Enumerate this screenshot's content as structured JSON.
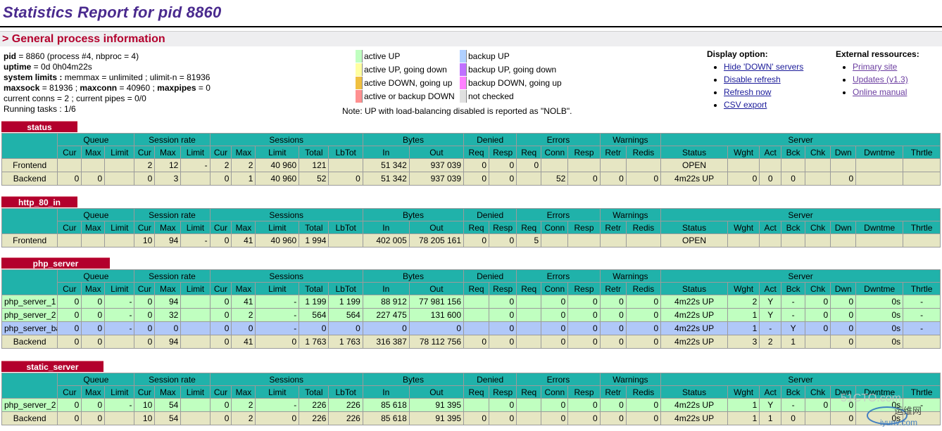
{
  "title": "Statistics Report for pid 8860",
  "section_title": "> General process information",
  "info": {
    "pid_label": "pid",
    "pid_text": " = 8860 (process #4, nbproc = 4)",
    "uptime_label": "uptime",
    "uptime_text": " = 0d 0h04m22s",
    "limits_label": "system limits :",
    "limits_text": " memmax = unlimited ; ulimit-n = 81936",
    "maxsock_label": "maxsock",
    "maxsock_text": " = 81936 ; ",
    "maxconn_label": "maxconn",
    "maxconn_text": " = 40960 ; ",
    "maxpipes_label": "maxpipes",
    "maxpipes_text": " = 0",
    "conns_text": "current conns = 2 ; current pipes = 0/0",
    "tasks_text": "Running tasks : 1/6"
  },
  "legend": {
    "items": [
      {
        "label": "active UP",
        "color": "#c0ffc0"
      },
      {
        "label": "active UP, going down",
        "color": "#ffffa0"
      },
      {
        "label": "active DOWN, going up",
        "color": "#f0c040"
      },
      {
        "label": "active or backup DOWN",
        "color": "#ff9090"
      },
      {
        "label": "backup UP",
        "color": "#b0d0ff"
      },
      {
        "label": "backup UP, going down",
        "color": "#c070ff"
      },
      {
        "label": "backup DOWN, going up",
        "color": "#ff80ff"
      },
      {
        "label": "not checked",
        "color": "#e0e0e0"
      }
    ],
    "note": "Note: UP with load-balancing disabled is reported as \"NOLB\"."
  },
  "display_options": {
    "heading": "Display option:",
    "links": [
      "Hide 'DOWN' servers",
      "Disable refresh",
      "Refresh now",
      "CSV export"
    ]
  },
  "external": {
    "heading": "External ressources:",
    "links": [
      "Primary site",
      "Updates (v1.3)",
      "Online manual"
    ]
  },
  "groups": [
    "Queue",
    "Session rate",
    "Sessions",
    "Bytes",
    "Denied",
    "Errors",
    "Warnings",
    "Server"
  ],
  "columns": [
    "Cur",
    "Max",
    "Limit",
    "Cur",
    "Max",
    "Limit",
    "Cur",
    "Max",
    "Limit",
    "Total",
    "LbTot",
    "In",
    "Out",
    "Req",
    "Resp",
    "Req",
    "Conn",
    "Resp",
    "Retr",
    "Redis",
    "Status",
    "Wght",
    "Act",
    "Bck",
    "Chk",
    "Dwn",
    "Dwntme",
    "Thrtle"
  ],
  "proxies": [
    {
      "name": "status",
      "rows": [
        {
          "type": "fe",
          "cells": [
            "Frontend",
            "",
            "",
            "",
            "2",
            "12",
            "-",
            "2",
            "2",
            "40 960",
            "121",
            "",
            "51 342",
            "937 039",
            "0",
            "0",
            "0",
            "",
            "",
            "",
            "",
            "OPEN",
            "",
            "",
            "",
            "",
            "",
            "",
            ""
          ]
        },
        {
          "type": "be",
          "cells": [
            "Backend",
            "0",
            "0",
            "",
            "0",
            "3",
            "",
            "0",
            "1",
            "40 960",
            "52",
            "0",
            "51 342",
            "937 039",
            "0",
            "0",
            "",
            "52",
            "0",
            "0",
            "0",
            "4m22s UP",
            "0",
            "0",
            "0",
            "",
            "0",
            "",
            ""
          ]
        }
      ]
    },
    {
      "name": "http_80_in",
      "rows": [
        {
          "type": "fe",
          "cells": [
            "Frontend",
            "",
            "",
            "",
            "10",
            "94",
            "-",
            "0",
            "41",
            "40 960",
            "1 994",
            "",
            "402 005",
            "78 205 161",
            "0",
            "0",
            "5",
            "",
            "",
            "",
            "",
            "OPEN",
            "",
            "",
            "",
            "",
            "",
            "",
            ""
          ]
        }
      ]
    },
    {
      "name": "php_server",
      "rows": [
        {
          "type": "up",
          "cells": [
            "php_server_1",
            "0",
            "0",
            "-",
            "0",
            "94",
            "",
            "0",
            "41",
            "-",
            "1 199",
            "1 199",
            "88 912",
            "77 981 156",
            "",
            "0",
            "",
            "0",
            "0",
            "0",
            "0",
            "4m22s UP",
            "2",
            "Y",
            "-",
            "0",
            "0",
            "0s",
            "-"
          ]
        },
        {
          "type": "up",
          "cells": [
            "php_server_2",
            "0",
            "0",
            "-",
            "0",
            "32",
            "",
            "0",
            "2",
            "-",
            "564",
            "564",
            "227 475",
            "131 600",
            "",
            "0",
            "",
            "0",
            "0",
            "0",
            "0",
            "4m22s UP",
            "1",
            "Y",
            "-",
            "0",
            "0",
            "0s",
            "-"
          ]
        },
        {
          "type": "bk",
          "cells": [
            "php_server_bak",
            "0",
            "0",
            "-",
            "0",
            "0",
            "",
            "0",
            "0",
            "-",
            "0",
            "0",
            "0",
            "0",
            "",
            "0",
            "",
            "0",
            "0",
            "0",
            "0",
            "4m22s UP",
            "1",
            "-",
            "Y",
            "0",
            "0",
            "0s",
            "-"
          ]
        },
        {
          "type": "be",
          "cells": [
            "Backend",
            "0",
            "0",
            "",
            "0",
            "94",
            "",
            "0",
            "41",
            "0",
            "1 763",
            "1 763",
            "316 387",
            "78 112 756",
            "0",
            "0",
            "",
            "0",
            "0",
            "0",
            "0",
            "4m22s UP",
            "3",
            "2",
            "1",
            "",
            "0",
            "0s",
            ""
          ]
        }
      ]
    },
    {
      "name": "static_server",
      "rows": [
        {
          "type": "up",
          "cells": [
            "php_server_2",
            "0",
            "0",
            "-",
            "10",
            "54",
            "",
            "0",
            "2",
            "-",
            "226",
            "226",
            "85 618",
            "91 395",
            "",
            "0",
            "",
            "0",
            "0",
            "0",
            "0",
            "4m22s UP",
            "1",
            "Y",
            "-",
            "0",
            "0",
            "0s",
            "-"
          ]
        },
        {
          "type": "be",
          "cells": [
            "Backend",
            "0",
            "0",
            "",
            "10",
            "54",
            "",
            "0",
            "2",
            "0",
            "226",
            "226",
            "85 618",
            "91 395",
            "0",
            "0",
            "",
            "0",
            "0",
            "0",
            "0",
            "4m22s UP",
            "1",
            "1",
            "0",
            "",
            "0",
            "0s",
            ""
          ]
        }
      ]
    }
  ],
  "watermark": {
    "line1": "51CTO.com",
    "line2": "运维网",
    "line3": "iyunv.com"
  }
}
